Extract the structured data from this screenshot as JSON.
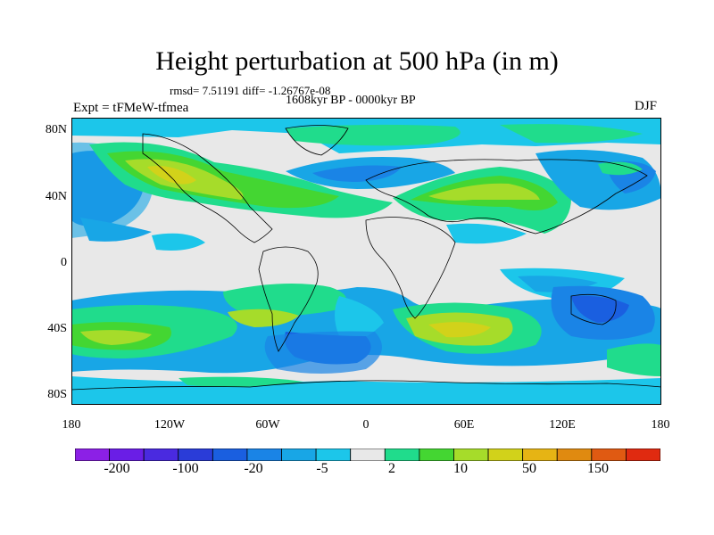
{
  "title": "Height perturbation at 500 hPa (in m)",
  "stats": "rmsd= 7.51191 diff= -1.26767e-08",
  "period": "1608kyr BP - 0000kyr BP",
  "experiment": "Expt = tFMeW-tfmea",
  "season": "DJF",
  "lat_labels": [
    "80N",
    "40N",
    "0",
    "40S",
    "80S"
  ],
  "lon_labels": [
    "180",
    "120W",
    "60W",
    "0",
    "60E",
    "120E",
    "180"
  ],
  "colorbar": {
    "colors": [
      "#8c20e6",
      "#6a1ee6",
      "#4a2ae0",
      "#2a3cd8",
      "#1a5fe0",
      "#1a84e6",
      "#18a6e6",
      "#1cc6ea",
      "#e8e8e8",
      "#20dc8c",
      "#44d632",
      "#a6dc2a",
      "#d2d21a",
      "#e6b414",
      "#e08a10",
      "#e05a12",
      "#e02a10"
    ],
    "labels": [
      "-200",
      "-100",
      "-20",
      "-5",
      "2",
      "10",
      "50",
      "150"
    ]
  }
}
